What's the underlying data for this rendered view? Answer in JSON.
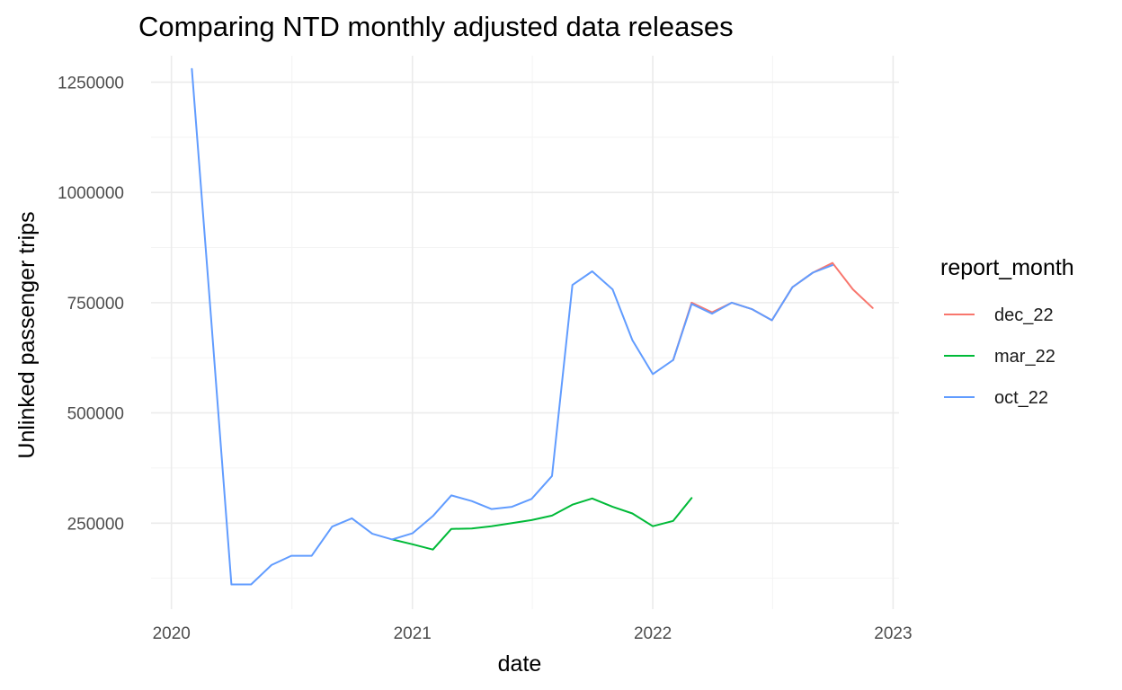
{
  "chart_data": {
    "type": "line",
    "title": "Comparing NTD monthly adjusted data releases",
    "xlabel": "date",
    "ylabel": "Unlinked passenger trips",
    "x_ticks": [
      "2020",
      "2021",
      "2022",
      "2023"
    ],
    "y_ticks": [
      250000,
      500000,
      750000,
      1000000,
      1250000
    ],
    "y_tick_labels": [
      "250000",
      "500000",
      "750000",
      "1000000",
      "1250000"
    ],
    "xlim": [
      "2019-12-01",
      "2023-01-10"
    ],
    "ylim": [
      55000,
      1310000
    ],
    "grid": true,
    "legend": {
      "title": "report_month",
      "position": "right"
    },
    "series": [
      {
        "name": "dec_22",
        "color": "#F8766D",
        "x": [
          "2022-02-01",
          "2022-03-01",
          "2022-04-01",
          "2022-05-01",
          "2022-06-01",
          "2022-07-01",
          "2022-08-01",
          "2022-09-01",
          "2022-10-01",
          "2022-11-01",
          "2022-12-01"
        ],
        "y": [
          620000,
          750000,
          728000,
          750000,
          735000,
          710000,
          785000,
          818000,
          840000,
          780000,
          738000
        ]
      },
      {
        "name": "mar_22",
        "color": "#00BA38",
        "x": [
          "2020-12-01",
          "2021-01-01",
          "2021-02-01",
          "2021-03-01",
          "2021-04-01",
          "2021-05-01",
          "2021-06-01",
          "2021-07-01",
          "2021-08-01",
          "2021-09-01",
          "2021-10-01",
          "2021-11-01",
          "2021-12-01",
          "2022-01-01",
          "2022-02-01",
          "2022-03-01"
        ],
        "y": [
          213000,
          202000,
          190000,
          237000,
          238000,
          243000,
          250000,
          257000,
          267000,
          292000,
          306000,
          287000,
          272000,
          243000,
          255000,
          307000
        ]
      },
      {
        "name": "oct_22",
        "color": "#619CFF",
        "x": [
          "2020-02-01",
          "2020-03-01",
          "2020-04-01",
          "2020-05-01",
          "2020-06-01",
          "2020-07-01",
          "2020-08-01",
          "2020-09-01",
          "2020-10-01",
          "2020-11-01",
          "2020-12-01",
          "2021-01-01",
          "2021-02-01",
          "2021-03-01",
          "2021-04-01",
          "2021-05-01",
          "2021-06-01",
          "2021-07-01",
          "2021-08-01",
          "2021-09-01",
          "2021-10-01",
          "2021-11-01",
          "2021-12-01",
          "2022-01-01",
          "2022-02-01",
          "2022-03-01",
          "2022-04-01",
          "2022-05-01",
          "2022-06-01",
          "2022-07-01",
          "2022-08-01",
          "2022-09-01",
          "2022-10-01"
        ],
        "y": [
          1280000,
          720000,
          111000,
          111000,
          155000,
          176000,
          176000,
          242000,
          261000,
          226000,
          213000,
          227000,
          266000,
          313000,
          300000,
          282000,
          287000,
          305000,
          357000,
          790000,
          821000,
          780000,
          665000,
          588000,
          620000,
          747000,
          725000,
          750000,
          735000,
          710000,
          785000,
          818000,
          835000
        ]
      }
    ]
  }
}
